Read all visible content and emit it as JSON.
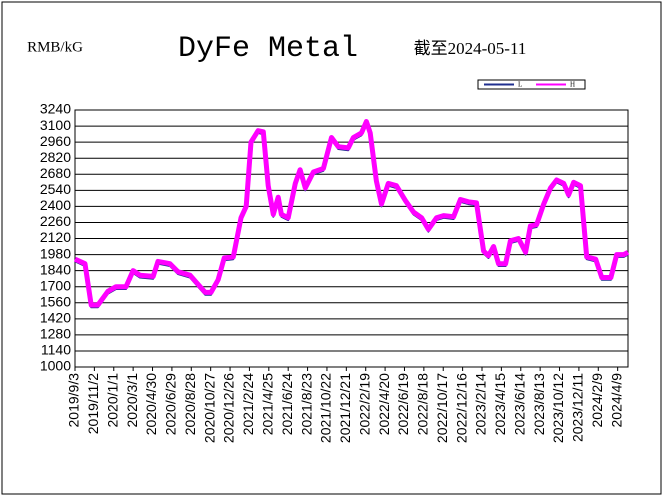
{
  "chart_data": {
    "type": "line",
    "title": "DyFe Metal",
    "unit_label": "RMB/kG",
    "date_note": "截至2024-05-11",
    "x": [
      "2019/9/3",
      "2019/10/4",
      "2019/10/23",
      "2019/11/13",
      "2019/12/14",
      "2020/1/8",
      "2020/2/8",
      "2020/3/1",
      "2020/3/22",
      "2020/5/2",
      "2020/5/17",
      "2020/6/23",
      "2020/7/18",
      "2020/8/24",
      "2020/9/18",
      "2020/10/10",
      "2020/10/28",
      "2020/11/19",
      "2020/12/8",
      "2021/1/5",
      "2021/1/29",
      "2021/2/14",
      "2021/3/1",
      "2021/3/23",
      "2021/4/8",
      "2021/4/23",
      "2021/5/9",
      "2021/5/24",
      "2021/6/3",
      "2021/6/24",
      "2021/7/16",
      "2021/7/31",
      "2021/8/16",
      "2021/9/10",
      "2021/10/11",
      "2021/11/5",
      "2021/11/26",
      "2021/12/27",
      "2022/1/12",
      "2022/2/6",
      "2022/2/21",
      "2022/3/5",
      "2022/3/24",
      "2022/4/9",
      "2022/4/30",
      "2022/5/25",
      "2022/6/22",
      "2022/7/17",
      "2022/8/11",
      "2022/9/1",
      "2022/9/26",
      "2022/10/18",
      "2022/11/18",
      "2022/12/9",
      "2023/1/3",
      "2023/1/28",
      "2023/2/19",
      "2023/3/6",
      "2023/3/22",
      "2023/4/6",
      "2023/4/28",
      "2023/5/13",
      "2023/6/7",
      "2023/6/29",
      "2023/7/14",
      "2023/8/2",
      "2023/8/24",
      "2023/9/14",
      "2023/10/3",
      "2023/10/25",
      "2023/11/9",
      "2023/11/25",
      "2023/12/16",
      "2024/1/4",
      "2024/2/1",
      "2024/2/20",
      "2024/3/19",
      "2024/4/6",
      "2024/4/28",
      "2024/5/11"
    ],
    "series": [
      {
        "name": "L",
        "color": "#1f2f8f",
        "values": [
          1920,
          1880,
          1520,
          1520,
          1640,
          1680,
          1680,
          1820,
          1780,
          1770,
          1900,
          1880,
          1810,
          1780,
          1700,
          1630,
          1630,
          1740,
          1930,
          1940,
          2280,
          2380,
          2940,
          3040,
          3030,
          2560,
          2310,
          2460,
          2310,
          2280,
          2580,
          2700,
          2540,
          2680,
          2710,
          2980,
          2900,
          2890,
          2980,
          3020,
          3120,
          3020,
          2600,
          2400,
          2580,
          2560,
          2430,
          2330,
          2280,
          2180,
          2280,
          2300,
          2290,
          2440,
          2420,
          2410,
          1990,
          1950,
          2030,
          1880,
          1880,
          2080,
          2100,
          1980,
          2210,
          2220,
          2400,
          2540,
          2610,
          2580,
          2480,
          2590,
          2560,
          1940,
          1920,
          1760,
          1760,
          1960,
          1960,
          1980
        ]
      },
      {
        "name": "H",
        "color": "#ff00ff",
        "values": [
          1940,
          1900,
          1540,
          1540,
          1660,
          1700,
          1700,
          1840,
          1800,
          1790,
          1920,
          1900,
          1830,
          1800,
          1720,
          1650,
          1650,
          1760,
          1950,
          1960,
          2300,
          2400,
          2960,
          3060,
          3050,
          2580,
          2330,
          2480,
          2330,
          2300,
          2600,
          2720,
          2560,
          2700,
          2730,
          3000,
          2920,
          2910,
          3000,
          3040,
          3140,
          3040,
          2620,
          2420,
          2600,
          2580,
          2450,
          2350,
          2300,
          2200,
          2300,
          2320,
          2310,
          2460,
          2440,
          2430,
          2010,
          1970,
          2050,
          1900,
          1900,
          2100,
          2120,
          2000,
          2230,
          2240,
          2420,
          2560,
          2630,
          2600,
          2500,
          2610,
          2580,
          1960,
          1940,
          1780,
          1780,
          1980,
          1980,
          2000
        ]
      }
    ],
    "xlim": [
      "2019/9/3",
      "2024/5/11"
    ],
    "xticks": [
      "2019/9/3",
      "2019/11/2",
      "2020/1/1",
      "2020/3/1",
      "2020/4/30",
      "2020/6/29",
      "2020/8/28",
      "2020/10/27",
      "2020/12/26",
      "2021/2/24",
      "2021/4/25",
      "2021/6/24",
      "2021/8/23",
      "2021/10/22",
      "2021/12/21",
      "2022/2/19",
      "2022/4/20",
      "2022/6/19",
      "2022/8/18",
      "2022/10/17",
      "2022/12/16",
      "2023/2/14",
      "2023/4/15",
      "2023/6/14",
      "2023/8/13",
      "2023/10/12",
      "2023/12/11",
      "2024/2/9",
      "2024/4/9"
    ],
    "ylim": [
      1000,
      3240
    ],
    "yticks": [
      1000,
      1140,
      1280,
      1420,
      1560,
      1700,
      1840,
      1980,
      2120,
      2260,
      2400,
      2540,
      2680,
      2820,
      2960,
      3100,
      3240
    ],
    "grid": true,
    "legend": "top-right"
  }
}
